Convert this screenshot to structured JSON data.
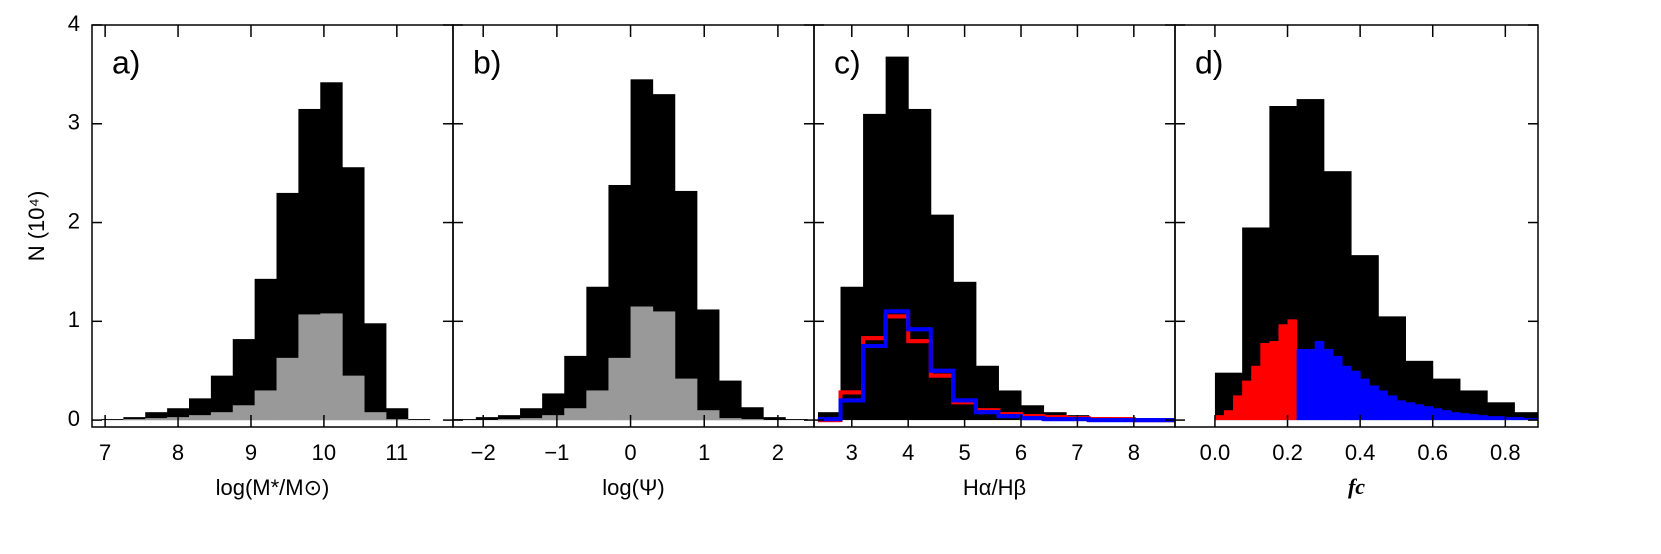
{
  "chart_data": [
    {
      "type": "histogram",
      "panel_label": "a)",
      "xlabel": "log(M*/M⊙)",
      "ylabel": "N (10⁴)",
      "xlim": [
        6.82,
        11.77
      ],
      "xticks": [
        7,
        8,
        9,
        10,
        11
      ],
      "ylim": [
        -0.07,
        4
      ],
      "yticks": [
        0,
        1,
        2,
        3,
        4
      ],
      "bins": [
        6.95,
        7.25,
        7.55,
        7.85,
        8.15,
        8.45,
        8.75,
        9.05,
        9.35,
        9.65,
        9.95,
        10.25,
        10.55,
        10.85,
        11.15,
        11.45
      ],
      "series": [
        {
          "color": "#000000",
          "style": "fill",
          "values": [
            0.01,
            0.03,
            0.08,
            0.12,
            0.22,
            0.45,
            0.82,
            1.43,
            2.3,
            3.15,
            3.42,
            2.56,
            0.98,
            0.12,
            0.01
          ]
        },
        {
          "color": "#999999",
          "style": "fill",
          "values": [
            0,
            0.01,
            0.02,
            0.03,
            0.05,
            0.08,
            0.15,
            0.3,
            0.63,
            1.07,
            1.08,
            0.45,
            0.08,
            0.01,
            0
          ]
        }
      ]
    },
    {
      "type": "histogram",
      "panel_label": "b)",
      "xlabel": "log(Ψ)",
      "xlim": [
        -2.41,
        2.49
      ],
      "xticks": [
        {
          "value": -2,
          "label": "−2"
        },
        {
          "value": -1,
          "label": "−1"
        },
        0,
        1,
        2
      ],
      "ylim": [
        -0.07,
        4
      ],
      "yticks": [
        0,
        1,
        2,
        3,
        4
      ],
      "bins": [
        -2.4,
        -2.1,
        -1.8,
        -1.5,
        -1.2,
        -0.9,
        -0.6,
        -0.3,
        0,
        0.3,
        0.6,
        0.9,
        1.2,
        1.5,
        1.8,
        2.1,
        2.4
      ],
      "series": [
        {
          "color": "#000000",
          "style": "fill",
          "values": [
            0.01,
            0.03,
            0.05,
            0.12,
            0.27,
            0.65,
            1.35,
            2.38,
            3.45,
            3.3,
            2.32,
            1.12,
            0.4,
            0.13,
            0.03,
            0.01
          ]
        },
        {
          "color": "#999999",
          "style": "fill",
          "values": [
            0,
            0,
            0.01,
            0.02,
            0.05,
            0.12,
            0.3,
            0.63,
            1.15,
            1.1,
            0.42,
            0.1,
            0.02,
            0.01,
            0,
            0
          ]
        }
      ]
    },
    {
      "type": "histogram",
      "panel_label": "c)",
      "xlabel": "Hα/Hβ",
      "xlim": [
        2.33,
        8.73
      ],
      "xticks": [
        3,
        4,
        5,
        6,
        7,
        8
      ],
      "ylim": [
        -0.07,
        4
      ],
      "yticks": [
        0,
        1,
        2,
        3,
        4
      ],
      "bins": [
        2.4,
        2.8,
        3.2,
        3.6,
        4.0,
        4.4,
        4.8,
        5.2,
        5.6,
        6.0,
        6.4,
        6.8,
        7.2,
        7.6,
        8.0,
        8.4,
        8.8
      ],
      "series": [
        {
          "color": "#000000",
          "style": "fill",
          "values": [
            0.08,
            1.35,
            3.1,
            3.68,
            3.15,
            2.08,
            1.4,
            0.55,
            0.3,
            0.15,
            0.08,
            0.05,
            0.03,
            0.02,
            0.01,
            0.01
          ]
        },
        {
          "color": "#ff0000",
          "style": "step",
          "values": [
            0,
            0.28,
            0.83,
            1.05,
            0.8,
            0.45,
            0.18,
            0.1,
            0.06,
            0.04,
            0.03,
            0.02,
            0.01,
            0.01,
            0,
            0
          ]
        },
        {
          "color": "#0000ff",
          "style": "step",
          "values": [
            0.01,
            0.2,
            0.75,
            1.1,
            0.92,
            0.5,
            0.2,
            0.08,
            0.04,
            0.02,
            0.01,
            0.01,
            0,
            0,
            0,
            0
          ]
        }
      ]
    },
    {
      "type": "histogram",
      "panel_label": "d)",
      "xlabel": "fc",
      "xlim": [
        -0.11,
        0.89
      ],
      "xticks": [
        {
          "value": 0,
          "label": "0.0"
        },
        0.2,
        0.4,
        0.6,
        0.8
      ],
      "ylim": [
        -0.07,
        4
      ],
      "yticks": [
        0,
        1,
        2,
        3,
        4
      ],
      "bins": [
        0,
        0.075,
        0.15,
        0.225,
        0.3,
        0.375,
        0.45,
        0.525,
        0.6,
        0.675,
        0.75,
        0.825,
        0.9
      ],
      "series": [
        {
          "color": "#000000",
          "style": "fill",
          "values": [
            0.48,
            1.95,
            3.18,
            3.25,
            2.52,
            1.67,
            1.05,
            0.6,
            0.42,
            0.3,
            0.18,
            0.08
          ]
        },
        {
          "color": "#ff0000",
          "style": "fill",
          "bins": [
            0,
            0.025,
            0.05,
            0.075,
            0.1,
            0.125,
            0.15,
            0.175,
            0.2,
            0.225
          ],
          "values": [
            0.05,
            0.1,
            0.25,
            0.4,
            0.55,
            0.78,
            0.8,
            0.97,
            1.02
          ]
        },
        {
          "color": "#0000ff",
          "style": "fill",
          "bins": [
            0.225,
            0.25,
            0.275,
            0.3,
            0.325,
            0.35,
            0.375,
            0.4,
            0.425,
            0.45,
            0.475,
            0.5,
            0.525,
            0.55,
            0.575,
            0.6,
            0.625,
            0.65,
            0.675,
            0.7,
            0.725,
            0.75,
            0.775,
            0.8,
            0.825,
            0.85,
            0.875,
            0.9
          ],
          "values": [
            0.72,
            0.72,
            0.8,
            0.72,
            0.65,
            0.55,
            0.5,
            0.42,
            0.35,
            0.3,
            0.25,
            0.2,
            0.18,
            0.16,
            0.14,
            0.12,
            0.1,
            0.08,
            0.07,
            0.06,
            0.05,
            0.04,
            0.04,
            0.03,
            0.03,
            0.02,
            0.02
          ]
        }
      ]
    }
  ]
}
